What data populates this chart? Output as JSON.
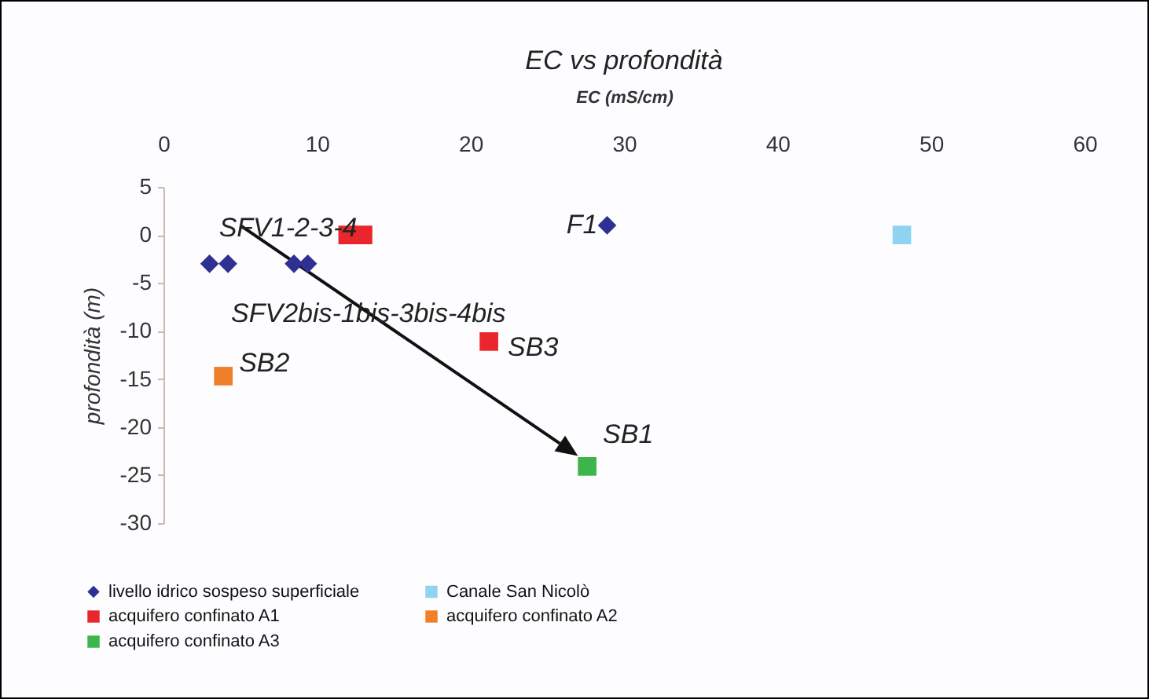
{
  "chart_data": {
    "type": "scatter",
    "title": "EC vs profondità",
    "xlabel": "EC (mS/cm)",
    "ylabel": "profondità (m)",
    "xlim": [
      0,
      60
    ],
    "xticks": [
      0,
      10,
      20,
      30,
      40,
      50,
      60
    ],
    "ylim": [
      -30,
      5
    ],
    "yticks": [
      5,
      0,
      -5,
      -10,
      -15,
      -20,
      -25,
      -30
    ],
    "grid": false,
    "legend": "bottom",
    "series": [
      {
        "name": "livello idrico sospeso superficiale",
        "color": "#2e3192",
        "marker": "diamond",
        "x": [
          3,
          4.2,
          8.5,
          9.4,
          28.9
        ],
        "values": [
          -3,
          -3,
          -3,
          -3,
          1
        ]
      },
      {
        "name": "Canale San Nicolò",
        "color": "#8fd3f0",
        "marker": "square",
        "x": [
          48.1
        ],
        "values": [
          0
        ]
      },
      {
        "name": "acquifero confinato A1",
        "color": "#e8262b",
        "marker": "square",
        "x": [
          12,
          13,
          21.2
        ],
        "values": [
          0,
          0,
          -11.1
        ]
      },
      {
        "name": "acquifero confinato A2",
        "color": "#f07f2a",
        "marker": "square",
        "x": [
          3.9
        ],
        "values": [
          -14.7
        ]
      },
      {
        "name": "acquifero confinato A3",
        "color": "#3cb54a",
        "marker": "square",
        "x": [
          27.6
        ],
        "values": [
          -24.1
        ]
      }
    ],
    "annotations": [
      {
        "text": "SFV1-2-3-4",
        "x": 12,
        "y": 0
      },
      {
        "text": "F1",
        "x": 28.9,
        "y": 1
      },
      {
        "text": "SFV2bis-1bis-3bis-4bis",
        "x": 8.5,
        "y": -3
      },
      {
        "text": "SB2",
        "x": 3.9,
        "y": -14.7
      },
      {
        "text": "SB3",
        "x": 21.2,
        "y": -11.1
      },
      {
        "text": "SB1",
        "x": 27.6,
        "y": -24.1
      }
    ]
  }
}
